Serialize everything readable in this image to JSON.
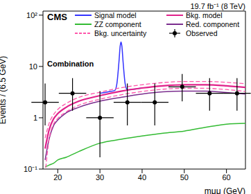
{
  "chart_data": {
    "type": "line",
    "title": "19.7 fb⁻¹ (8 TeV)",
    "annotations": [
      "CMS",
      "Combination"
    ],
    "x_label": "mμμ (GeV)",
    "y_label": "Events / (6.5 GeV)",
    "log": "y",
    "legend": "top",
    "xlim": [
      16.5,
      64.5
    ],
    "xticks": [
      20,
      30,
      40,
      50,
      60
    ],
    "ylim": [
      0.1,
      120
    ],
    "yticks": [
      {
        "value": 0.1,
        "label": "10⁻¹"
      },
      1,
      10,
      {
        "value": 100,
        "label": "10²"
      }
    ],
    "series": [
      {
        "name": "Signal model",
        "color": "#3333ff",
        "type": "line",
        "x": [
          30,
          32,
          33.5,
          34,
          34.5,
          34.8,
          35,
          35.2,
          35.5,
          36,
          36.5,
          38,
          40
        ],
        "values": [
          3.0,
          3.2,
          3.4,
          4.5,
          12,
          25,
          30,
          25,
          12,
          4.5,
          3.5,
          3.6,
          3.8
        ]
      },
      {
        "name": "Bkg. model",
        "color": "#e0218a",
        "type": "line",
        "x": [
          17,
          18,
          19,
          20,
          22,
          25,
          30,
          35,
          40,
          45,
          50,
          55,
          60,
          64.5
        ],
        "values": [
          0.25,
          0.6,
          0.95,
          1.2,
          1.6,
          2.1,
          2.7,
          3.3,
          3.8,
          4.2,
          4.4,
          4.4,
          4.2,
          3.9
        ]
      },
      {
        "name": "ZZ component",
        "color": "#33bb33",
        "type": "line",
        "x": [
          17,
          18,
          19,
          20,
          22,
          25,
          30,
          35,
          40,
          45,
          50,
          55,
          60,
          64.5
        ],
        "values": [
          0.11,
          0.12,
          0.13,
          0.15,
          0.17,
          0.22,
          0.32,
          0.38,
          0.44,
          0.5,
          0.55,
          0.65,
          0.75,
          0.78
        ]
      },
      {
        "name": "Red. component",
        "color": "#7b2d8e",
        "type": "line",
        "x": [
          17,
          18,
          19,
          20,
          22,
          25,
          30,
          35,
          40,
          45,
          50,
          55,
          60,
          64.5
        ],
        "values": [
          0.15,
          0.4,
          0.7,
          0.9,
          1.25,
          1.6,
          2.1,
          2.5,
          2.9,
          3.2,
          3.3,
          3.3,
          3.1,
          2.9
        ]
      },
      {
        "name": "Bkg. uncertainty",
        "color": "#ff55aa",
        "type": "band",
        "line_style": "dashed",
        "x": [
          17,
          18,
          19,
          20,
          22,
          25,
          30,
          35,
          40,
          45,
          50,
          55,
          60,
          64.5
        ],
        "low": [
          0.08,
          0.4,
          0.75,
          0.97,
          1.3,
          1.75,
          2.3,
          2.8,
          3.25,
          3.6,
          3.75,
          3.75,
          3.55,
          3.25
        ],
        "high": [
          0.4,
          0.8,
          1.15,
          1.45,
          1.9,
          2.5,
          3.15,
          3.85,
          4.4,
          4.85,
          5.1,
          5.1,
          4.9,
          4.6
        ]
      },
      {
        "name": "Observed",
        "color": "#000000",
        "type": "scatter",
        "marker": "circle",
        "x": [
          17,
          23.5,
          30,
          36.5,
          43,
          49.5,
          56,
          62.5
        ],
        "values": [
          2,
          3,
          1,
          2,
          2,
          4,
          3,
          3
        ],
        "y_err_low": [
          1.29,
          1.63,
          0.83,
          1.29,
          1.29,
          1.91,
          1.63,
          1.63
        ],
        "y_err_high": [
          2.64,
          2.92,
          2.3,
          2.64,
          2.64,
          3.16,
          2.92,
          2.92
        ],
        "x_err": [
          3.25,
          3.25,
          3.25,
          3.25,
          3.25,
          3.25,
          3.25,
          3.25
        ]
      }
    ]
  }
}
